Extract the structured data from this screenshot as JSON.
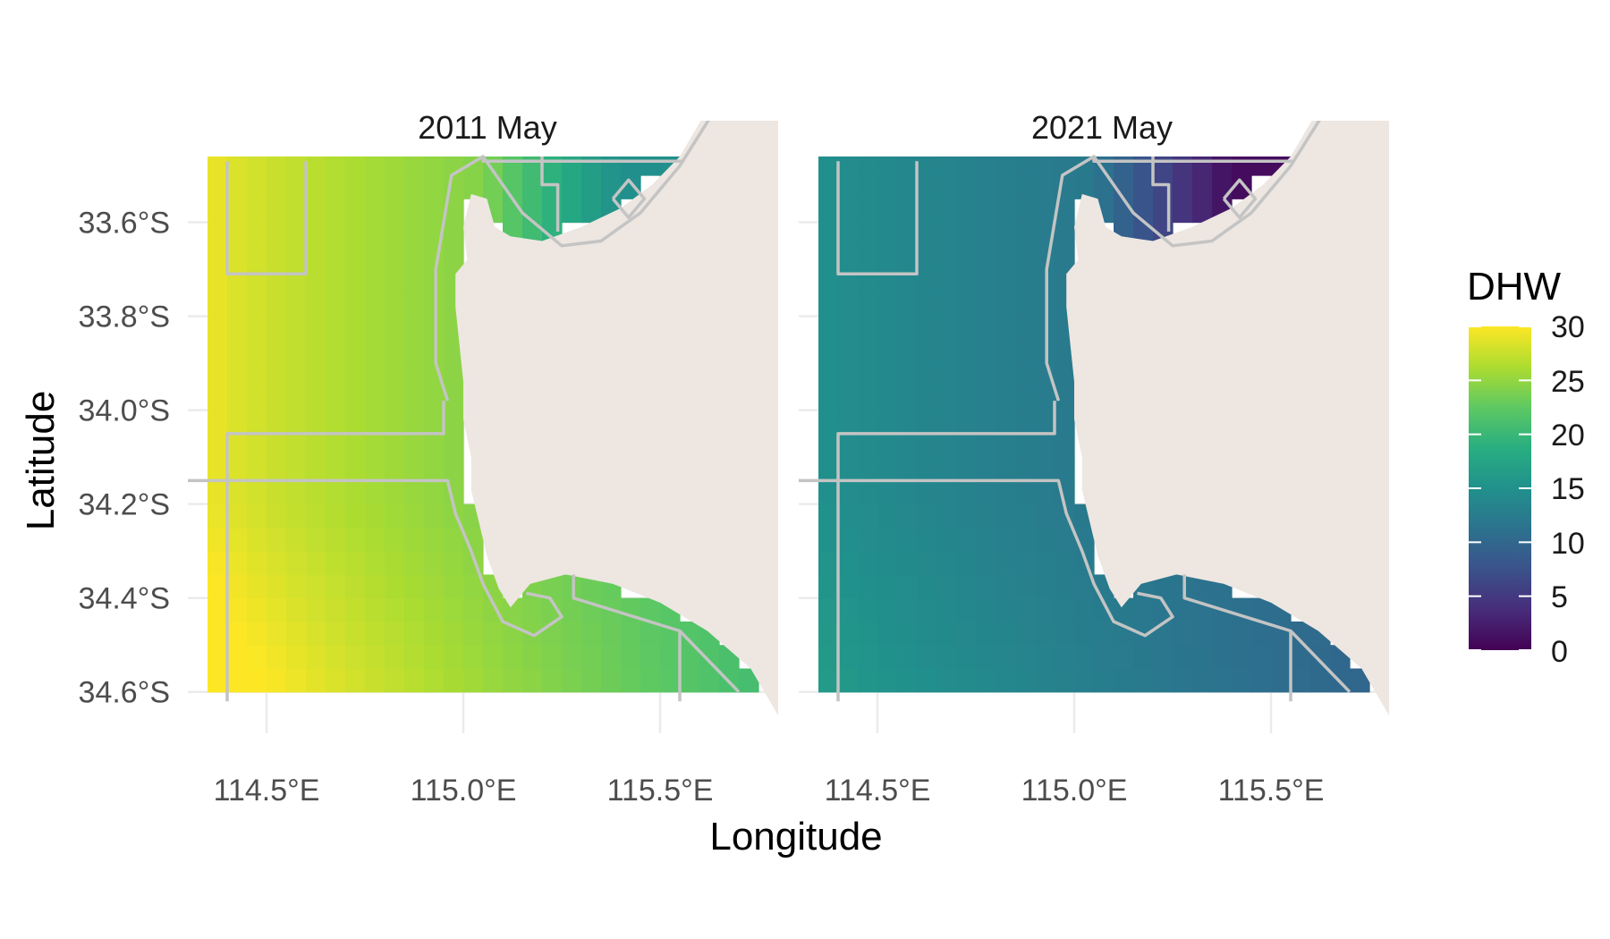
{
  "chart_data": {
    "type": "heatmap",
    "xlabel": "Longitude",
    "ylabel": "Latitude",
    "x_ticks": [
      "114.5°E",
      "115.0°E",
      "115.5°E"
    ],
    "y_ticks": [
      "33.6°S",
      "33.8°S",
      "34.0°S",
      "34.2°S",
      "34.4°S",
      "34.6°S"
    ],
    "xlim": [
      114.3,
      115.8
    ],
    "ylim": [
      -34.65,
      -33.46
    ],
    "legend": {
      "title": "DHW",
      "placement": "right",
      "range": [
        0,
        30
      ],
      "ticks": [
        "30",
        "25",
        "20",
        "15",
        "10",
        "5",
        "0"
      ],
      "palette": "viridis"
    },
    "panels": [
      {
        "title": "2011 May",
        "dhw_field": {
          "west": 29,
          "east": 21,
          "south_boost": 2.5,
          "coast_ne": 15
        }
      },
      {
        "title": "2021 May",
        "dhw_field": {
          "west": 15,
          "east": 10,
          "south_boost": 1.5,
          "coast_ne": 1
        }
      }
    ]
  }
}
